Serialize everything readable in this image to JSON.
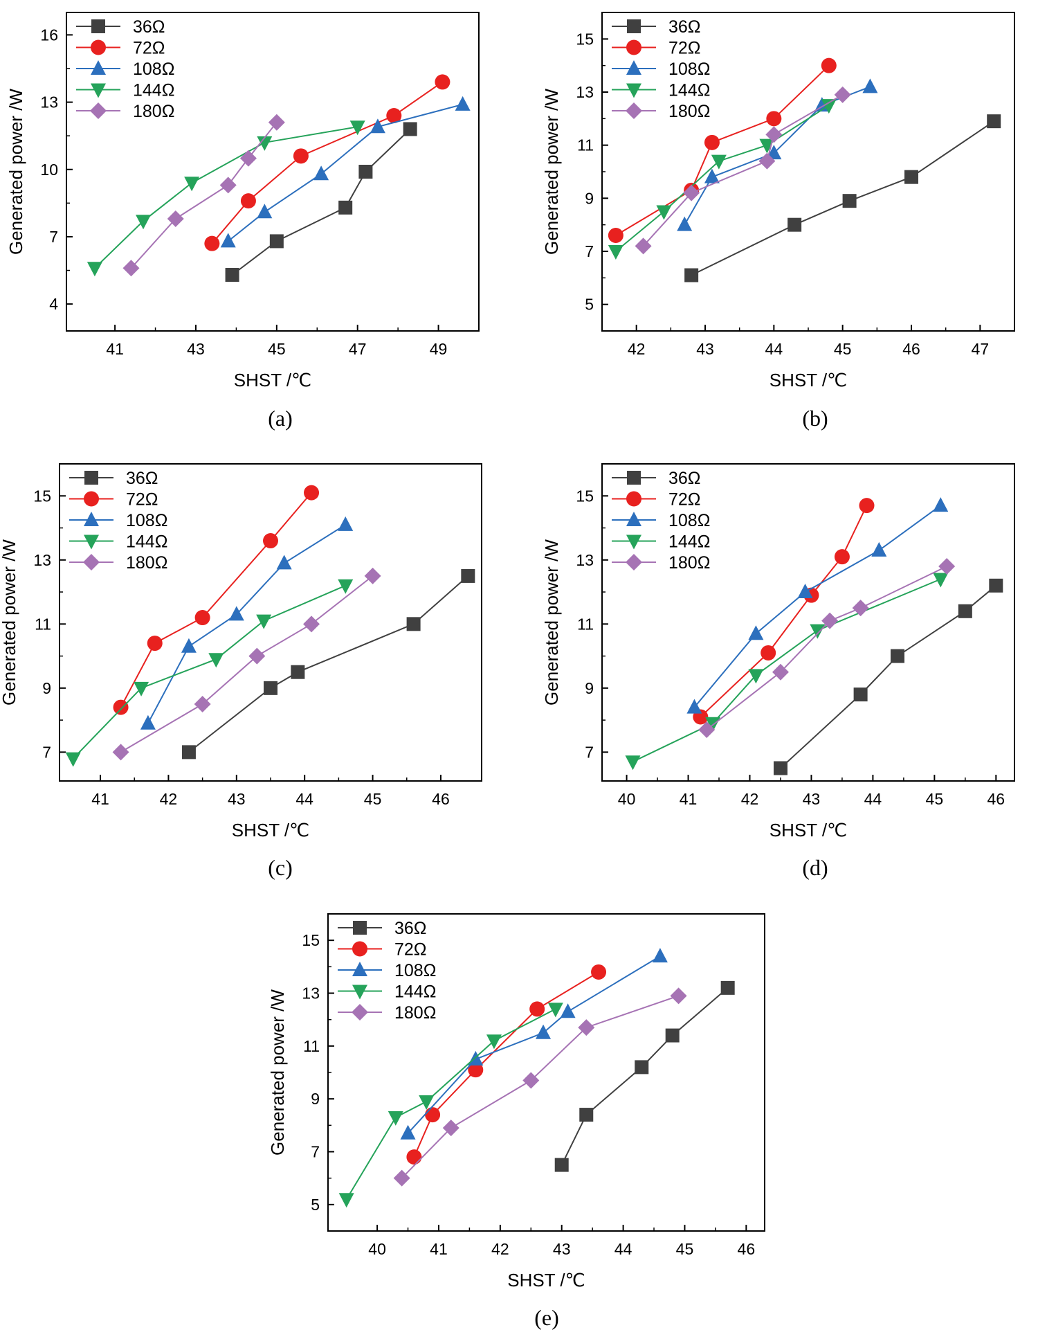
{
  "chart_data": [
    {
      "type": "line",
      "panel_label": "(a)",
      "xlabel": "SHST /℃",
      "ylabel": "Generated power /W",
      "xlim": [
        39.8,
        50.0
      ],
      "ylim": [
        2.8,
        17.0
      ],
      "xticks": [
        "41",
        "43",
        "45",
        "47",
        "49"
      ],
      "yticks": [
        "4",
        "7",
        "10",
        "13",
        "16"
      ],
      "series": [
        {
          "name": "36Ω",
          "x": [
            43.9,
            45.0,
            46.7,
            47.2,
            48.3
          ],
          "y": [
            5.3,
            6.8,
            8.3,
            9.9,
            11.8
          ]
        },
        {
          "name": "72Ω",
          "x": [
            43.4,
            44.3,
            45.6,
            47.9,
            49.1
          ],
          "y": [
            6.7,
            8.6,
            10.6,
            12.4,
            13.9
          ]
        },
        {
          "name": "108Ω",
          "x": [
            43.8,
            44.7,
            46.1,
            47.5,
            49.6
          ],
          "y": [
            6.8,
            8.1,
            9.8,
            11.9,
            12.9
          ]
        },
        {
          "name": "144Ω",
          "x": [
            40.5,
            41.7,
            42.9,
            44.7,
            47.0
          ],
          "y": [
            5.6,
            7.7,
            9.4,
            11.2,
            11.9
          ]
        },
        {
          "name": "180Ω",
          "x": [
            41.4,
            42.5,
            43.8,
            44.3,
            45.0
          ],
          "y": [
            5.6,
            7.8,
            9.3,
            10.5,
            12.1
          ]
        }
      ]
    },
    {
      "type": "line",
      "panel_label": "(b)",
      "xlabel": "SHST /℃",
      "ylabel": "Generated power /W",
      "xlim": [
        41.5,
        47.5
      ],
      "ylim": [
        4.0,
        16.0
      ],
      "xticks": [
        "42",
        "43",
        "44",
        "45",
        "46",
        "47"
      ],
      "yticks": [
        "5",
        "7",
        "9",
        "11",
        "13",
        "15"
      ],
      "series": [
        {
          "name": "36Ω",
          "x": [
            42.8,
            44.3,
            45.1,
            46.0,
            47.2
          ],
          "y": [
            6.1,
            8.0,
            8.9,
            9.8,
            11.9
          ]
        },
        {
          "name": "72Ω",
          "x": [
            41.7,
            42.8,
            43.1,
            44.0,
            44.8
          ],
          "y": [
            7.6,
            9.3,
            11.1,
            12.0,
            14.0
          ]
        },
        {
          "name": "108Ω",
          "x": [
            42.7,
            43.1,
            44.0,
            44.7,
            45.4
          ],
          "y": [
            8.0,
            9.8,
            10.7,
            12.5,
            13.2
          ]
        },
        {
          "name": "144Ω",
          "x": [
            41.7,
            42.4,
            43.2,
            43.9,
            44.8
          ],
          "y": [
            7.0,
            8.5,
            10.4,
            11.0,
            12.5
          ]
        },
        {
          "name": "180Ω",
          "x": [
            42.1,
            42.8,
            43.9,
            44.0,
            45.0
          ],
          "y": [
            7.2,
            9.2,
            10.4,
            11.4,
            12.9
          ]
        }
      ]
    },
    {
      "type": "line",
      "panel_label": "(c)",
      "xlabel": "SHST /℃",
      "ylabel": "Generated power /W",
      "xlim": [
        40.4,
        46.6
      ],
      "ylim": [
        6.1,
        16.0
      ],
      "xticks": [
        "41",
        "42",
        "43",
        "44",
        "45",
        "46"
      ],
      "yticks": [
        "7",
        "9",
        "11",
        "13",
        "15"
      ],
      "series": [
        {
          "name": "36Ω",
          "x": [
            42.3,
            43.5,
            43.9,
            45.6,
            46.4
          ],
          "y": [
            7.0,
            9.0,
            9.5,
            11.0,
            12.5
          ]
        },
        {
          "name": "72Ω",
          "x": [
            41.3,
            41.8,
            42.5,
            43.5,
            44.1
          ],
          "y": [
            8.4,
            10.4,
            11.2,
            13.6,
            15.1
          ]
        },
        {
          "name": "108Ω",
          "x": [
            41.7,
            42.3,
            43.0,
            43.7,
            44.6
          ],
          "y": [
            7.9,
            10.3,
            11.3,
            12.9,
            14.1
          ]
        },
        {
          "name": "144Ω",
          "x": [
            40.6,
            41.6,
            42.7,
            43.4,
            44.6
          ],
          "y": [
            6.8,
            9.0,
            9.9,
            11.1,
            12.2
          ]
        },
        {
          "name": "180Ω",
          "x": [
            41.3,
            42.5,
            43.3,
            44.1,
            45.0
          ],
          "y": [
            7.0,
            8.5,
            10.0,
            11.0,
            12.5
          ]
        }
      ]
    },
    {
      "type": "line",
      "panel_label": "(d)",
      "xlabel": "SHST /℃",
      "ylabel": "Generated power /W",
      "xlim": [
        39.6,
        46.3
      ],
      "ylim": [
        6.1,
        16.0
      ],
      "xticks": [
        "40",
        "41",
        "42",
        "43",
        "44",
        "45",
        "46"
      ],
      "yticks": [
        "7",
        "9",
        "11",
        "13",
        "15"
      ],
      "series": [
        {
          "name": "36Ω",
          "x": [
            42.5,
            43.8,
            44.4,
            45.5,
            46.0
          ],
          "y": [
            6.5,
            8.8,
            10.0,
            11.4,
            12.2
          ]
        },
        {
          "name": "72Ω",
          "x": [
            41.2,
            42.3,
            43.0,
            43.5,
            43.9
          ],
          "y": [
            8.1,
            10.1,
            11.9,
            13.1,
            14.7
          ]
        },
        {
          "name": "108Ω",
          "x": [
            41.1,
            42.1,
            42.9,
            44.1,
            45.1
          ],
          "y": [
            8.4,
            10.7,
            12.0,
            13.3,
            14.7
          ]
        },
        {
          "name": "144Ω",
          "x": [
            40.1,
            41.4,
            42.1,
            43.1,
            45.1
          ],
          "y": [
            6.7,
            7.9,
            9.4,
            10.8,
            12.4
          ]
        },
        {
          "name": "180Ω",
          "x": [
            41.3,
            42.5,
            43.3,
            43.8,
            45.2
          ],
          "y": [
            7.7,
            9.5,
            11.1,
            11.5,
            12.8
          ]
        }
      ]
    },
    {
      "type": "line",
      "panel_label": "(e)",
      "xlabel": "SHST /℃",
      "ylabel": "Generated power /W",
      "xlim": [
        39.2,
        46.3
      ],
      "ylim": [
        4.0,
        16.0
      ],
      "xticks": [
        "40",
        "41",
        "42",
        "43",
        "44",
        "45",
        "46"
      ],
      "yticks": [
        "5",
        "7",
        "9",
        "11",
        "13",
        "15"
      ],
      "series": [
        {
          "name": "36Ω",
          "x": [
            43.0,
            43.4,
            44.3,
            44.8,
            45.7
          ],
          "y": [
            6.5,
            8.4,
            10.2,
            11.4,
            13.2
          ]
        },
        {
          "name": "72Ω",
          "x": [
            40.6,
            40.9,
            41.6,
            42.6,
            43.6
          ],
          "y": [
            6.8,
            8.4,
            10.1,
            12.4,
            13.8
          ]
        },
        {
          "name": "108Ω",
          "x": [
            40.5,
            41.6,
            42.7,
            43.1,
            44.6
          ],
          "y": [
            7.7,
            10.5,
            11.5,
            12.3,
            14.4
          ]
        },
        {
          "name": "144Ω",
          "x": [
            39.5,
            40.3,
            40.8,
            41.9,
            42.9
          ],
          "y": [
            5.2,
            8.3,
            8.9,
            11.2,
            12.4
          ]
        },
        {
          "name": "180Ω",
          "x": [
            40.4,
            41.2,
            42.5,
            43.4,
            44.9
          ],
          "y": [
            6.0,
            7.9,
            9.7,
            11.7,
            12.9
          ]
        }
      ]
    }
  ],
  "series_style": [
    {
      "color": "#404040",
      "marker": "square"
    },
    {
      "color": "#e8211f",
      "marker": "circle"
    },
    {
      "color": "#2c6fbd",
      "marker": "triangle-up"
    },
    {
      "color": "#25a35a",
      "marker": "triangle-down"
    },
    {
      "color": "#a673b4",
      "marker": "diamond"
    }
  ]
}
